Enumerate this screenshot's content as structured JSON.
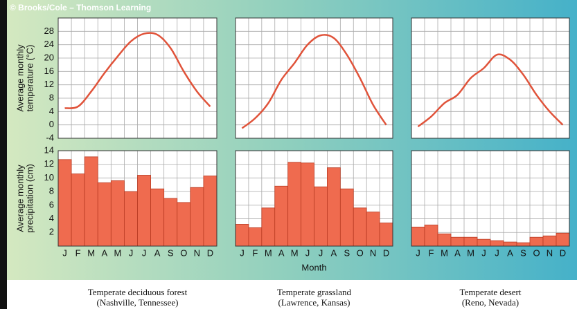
{
  "credit": "© Brooks/Cole – Thomson Learning",
  "chart_data": [
    {
      "type": "line",
      "ylabel": [
        "Average monthly",
        "temperature (°C)"
      ],
      "caption": [
        "Temperate deciduous forest",
        "(Nashville, Tennessee)"
      ],
      "color": "#e0533a",
      "ylim": [
        -4,
        32
      ],
      "yticks": [
        -4,
        0,
        4,
        8,
        12,
        16,
        20,
        24,
        28
      ],
      "values": [
        5,
        5.5,
        10,
        15.5,
        20.5,
        25,
        27.3,
        27,
        23,
        16,
        10,
        5.5
      ]
    },
    {
      "type": "line",
      "caption": [
        "Temperate grassland",
        "(Lawrence, Kansas)"
      ],
      "color": "#e0533a",
      "ylim": [
        -4,
        32
      ],
      "values": [
        -1,
        2,
        6.5,
        13.5,
        18.5,
        24,
        26.8,
        26,
        21,
        14,
        6,
        0
      ]
    },
    {
      "type": "line",
      "caption": [
        "Temperate desert",
        "(Reno, Nevada)"
      ],
      "color": "#e0533a",
      "ylim": [
        -4,
        32
      ],
      "values": [
        -0.5,
        2.5,
        6.5,
        9,
        14,
        17,
        21,
        19.5,
        15,
        9,
        4,
        0
      ]
    },
    {
      "type": "bar",
      "ylabel": [
        "Average monthly",
        "precipitation (cm)"
      ],
      "color": "#ef6b4f",
      "ylim": [
        0,
        14
      ],
      "yticks": [
        2,
        4,
        6,
        8,
        10,
        12,
        14
      ],
      "categories": [
        "J",
        "F",
        "M",
        "A",
        "M",
        "J",
        "J",
        "A",
        "S",
        "O",
        "N",
        "D"
      ],
      "values": [
        12.7,
        10.6,
        13.1,
        9.3,
        9.6,
        8,
        10.4,
        8.4,
        7,
        6.4,
        8.6,
        10.3
      ]
    },
    {
      "type": "bar",
      "xlabel": "Month",
      "color": "#ef6b4f",
      "ylim": [
        0,
        14
      ],
      "categories": [
        "J",
        "F",
        "M",
        "A",
        "M",
        "J",
        "J",
        "A",
        "S",
        "O",
        "N",
        "D"
      ],
      "values": [
        3.2,
        2.7,
        5.6,
        8.8,
        12.3,
        12.2,
        8.7,
        11.5,
        8.4,
        5.6,
        5.0,
        3.4
      ]
    },
    {
      "type": "bar",
      "color": "#ef6b4f",
      "ylim": [
        0,
        14
      ],
      "categories": [
        "J",
        "F",
        "M",
        "A",
        "M",
        "J",
        "J",
        "A",
        "S",
        "O",
        "N",
        "D"
      ],
      "values": [
        2.8,
        3.1,
        1.8,
        1.3,
        1.3,
        1.0,
        0.8,
        0.6,
        0.5,
        1.3,
        1.5,
        1.9
      ]
    }
  ]
}
